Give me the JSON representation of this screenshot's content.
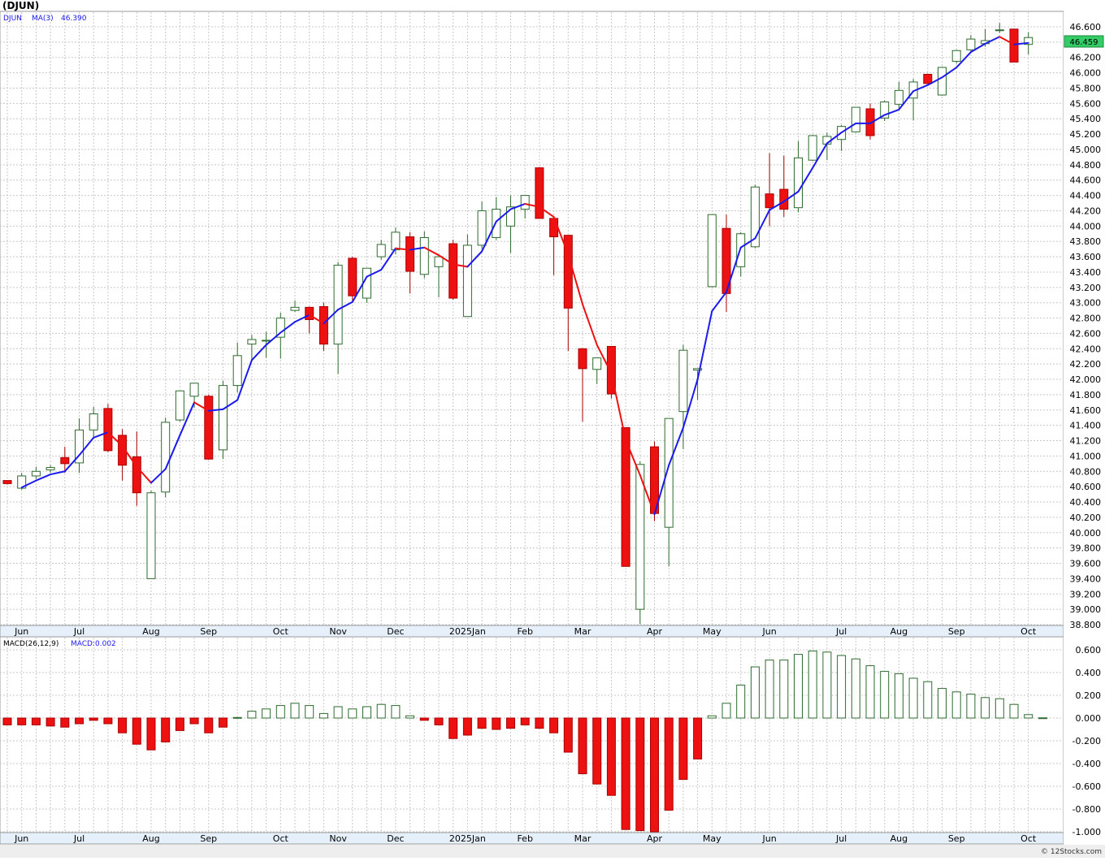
{
  "header": {
    "symbol_title": "(DJUN)",
    "legend_symbol": "DJUN",
    "legend_ma_label": "MA(3)",
    "legend_ma_value": "46.390",
    "last_price_tag": "46.459"
  },
  "macd_legend": {
    "label": "MACD(26,12,9)",
    "value_label": "MACD:0.002"
  },
  "credit": "© 12Stocks.com",
  "colors": {
    "up_fill": "#ffffff",
    "up_outline": "#2e6b2e",
    "down_fill": "#ee1111",
    "down_outline": "#aa0000",
    "ma_up": "#1a1aee",
    "ma_down": "#ee1111",
    "grid": "#c8c8c8",
    "axis_band": "#e6f0fb",
    "price_tag_bg": "#33cc66"
  },
  "chart_data": [
    {
      "type": "candlestick",
      "title": "DJUN",
      "ylim": [
        38.8,
        46.6
      ],
      "y_ticks": [
        "38.800",
        "39.000",
        "39.200",
        "39.400",
        "39.600",
        "39.800",
        "40.000",
        "40.200",
        "40.400",
        "40.600",
        "40.800",
        "41.000",
        "41.200",
        "41.400",
        "41.600",
        "41.800",
        "42.000",
        "42.200",
        "42.400",
        "42.600",
        "42.800",
        "43.000",
        "43.200",
        "43.400",
        "43.600",
        "43.800",
        "44.000",
        "44.200",
        "44.400",
        "44.600",
        "44.800",
        "45.000",
        "45.200",
        "45.400",
        "45.600",
        "45.800",
        "46.000",
        "46.200",
        "46.400",
        "46.600"
      ],
      "x_tick_labels": [
        "Jun",
        "Jul",
        "Aug",
        "Sep",
        "Oct",
        "Nov",
        "Dec",
        "2025Jan",
        "Feb",
        "Mar",
        "Apr",
        "May",
        "Jun",
        "Jul",
        "Aug",
        "Sep",
        "Oct"
      ],
      "x_tick_week_index": [
        1,
        5,
        10,
        14,
        19,
        23,
        27,
        32,
        36,
        40,
        45,
        49,
        53,
        58,
        62,
        66,
        71
      ],
      "ma_period": 3,
      "candles": [
        {
          "o": 40.68,
          "h": 40.68,
          "l": 40.63,
          "c": 40.64
        },
        {
          "o": 40.58,
          "h": 40.78,
          "l": 40.56,
          "c": 40.74
        },
        {
          "o": 40.74,
          "h": 40.86,
          "l": 40.7,
          "c": 40.8
        },
        {
          "o": 40.82,
          "h": 40.88,
          "l": 40.78,
          "c": 40.85
        },
        {
          "o": 40.98,
          "h": 41.12,
          "l": 40.78,
          "c": 40.9
        },
        {
          "o": 40.91,
          "h": 41.49,
          "l": 40.78,
          "c": 41.34
        },
        {
          "o": 41.34,
          "h": 41.64,
          "l": 41.25,
          "c": 41.55
        },
        {
          "o": 41.62,
          "h": 41.68,
          "l": 41.05,
          "c": 41.07
        },
        {
          "o": 41.27,
          "h": 41.35,
          "l": 40.68,
          "c": 40.88
        },
        {
          "o": 40.99,
          "h": 41.32,
          "l": 40.35,
          "c": 40.52
        },
        {
          "o": 39.4,
          "h": 40.55,
          "l": 39.4,
          "c": 40.52
        },
        {
          "o": 40.53,
          "h": 41.5,
          "l": 40.46,
          "c": 41.44
        },
        {
          "o": 41.47,
          "h": 41.85,
          "l": 41.45,
          "c": 41.85
        },
        {
          "o": 41.78,
          "h": 41.95,
          "l": 41.63,
          "c": 41.95
        },
        {
          "o": 41.78,
          "h": 41.8,
          "l": 40.95,
          "c": 40.96
        },
        {
          "o": 41.08,
          "h": 41.98,
          "l": 40.96,
          "c": 41.92
        },
        {
          "o": 41.92,
          "h": 42.48,
          "l": 41.83,
          "c": 42.31
        },
        {
          "o": 42.46,
          "h": 42.58,
          "l": 42.23,
          "c": 42.52
        },
        {
          "o": 42.5,
          "h": 42.62,
          "l": 42.28,
          "c": 42.51
        },
        {
          "o": 42.55,
          "h": 42.87,
          "l": 42.27,
          "c": 42.8
        },
        {
          "o": 42.9,
          "h": 43.03,
          "l": 42.88,
          "c": 42.94
        },
        {
          "o": 42.94,
          "h": 42.95,
          "l": 42.6,
          "c": 42.78
        },
        {
          "o": 42.95,
          "h": 43.0,
          "l": 42.37,
          "c": 42.46
        },
        {
          "o": 42.46,
          "h": 43.53,
          "l": 42.07,
          "c": 43.49
        },
        {
          "o": 43.58,
          "h": 43.6,
          "l": 43.02,
          "c": 43.09
        },
        {
          "o": 43.06,
          "h": 43.45,
          "l": 43.0,
          "c": 43.45
        },
        {
          "o": 43.6,
          "h": 43.82,
          "l": 43.56,
          "c": 43.76
        },
        {
          "o": 43.69,
          "h": 43.98,
          "l": 43.63,
          "c": 43.92
        },
        {
          "o": 43.86,
          "h": 43.92,
          "l": 43.12,
          "c": 43.41
        },
        {
          "o": 43.37,
          "h": 43.93,
          "l": 43.32,
          "c": 43.85
        },
        {
          "o": 43.47,
          "h": 43.6,
          "l": 43.07,
          "c": 43.6
        },
        {
          "o": 43.77,
          "h": 43.82,
          "l": 43.04,
          "c": 43.06
        },
        {
          "o": 42.82,
          "h": 43.89,
          "l": 42.82,
          "c": 43.75
        },
        {
          "o": 43.75,
          "h": 44.32,
          "l": 43.7,
          "c": 44.2
        },
        {
          "o": 43.85,
          "h": 44.38,
          "l": 43.82,
          "c": 44.22
        },
        {
          "o": 44.0,
          "h": 44.4,
          "l": 43.65,
          "c": 44.25
        },
        {
          "o": 44.22,
          "h": 44.4,
          "l": 44.1,
          "c": 44.4
        },
        {
          "o": 44.76,
          "h": 44.77,
          "l": 44.1,
          "c": 44.1
        },
        {
          "o": 44.1,
          "h": 44.12,
          "l": 43.36,
          "c": 43.86
        },
        {
          "o": 43.88,
          "h": 43.88,
          "l": 42.37,
          "c": 42.93
        },
        {
          "o": 42.4,
          "h": 42.4,
          "l": 41.45,
          "c": 42.14
        },
        {
          "o": 42.13,
          "h": 42.28,
          "l": 41.94,
          "c": 42.28
        },
        {
          "o": 42.43,
          "h": 42.43,
          "l": 41.75,
          "c": 41.81
        },
        {
          "o": 41.37,
          "h": 41.37,
          "l": 39.56,
          "c": 39.56
        },
        {
          "o": 39.0,
          "h": 40.93,
          "l": 38.81,
          "c": 40.89
        },
        {
          "o": 41.12,
          "h": 41.19,
          "l": 40.15,
          "c": 40.25
        },
        {
          "o": 40.07,
          "h": 41.49,
          "l": 39.56,
          "c": 41.49
        },
        {
          "o": 41.58,
          "h": 42.45,
          "l": 41.09,
          "c": 42.38
        },
        {
          "o": 42.12,
          "h": 42.14,
          "l": 41.73,
          "c": 42.14
        },
        {
          "o": 43.21,
          "h": 44.15,
          "l": 43.2,
          "c": 44.15
        },
        {
          "o": 43.97,
          "h": 44.15,
          "l": 42.88,
          "c": 43.12
        },
        {
          "o": 43.47,
          "h": 43.92,
          "l": 43.34,
          "c": 43.9
        },
        {
          "o": 43.73,
          "h": 44.54,
          "l": 43.71,
          "c": 44.51
        },
        {
          "o": 44.42,
          "h": 44.95,
          "l": 44.0,
          "c": 44.24
        },
        {
          "o": 44.48,
          "h": 44.92,
          "l": 44.12,
          "c": 44.22
        },
        {
          "o": 44.24,
          "h": 45.11,
          "l": 44.18,
          "c": 44.89
        },
        {
          "o": 44.86,
          "h": 45.19,
          "l": 44.85,
          "c": 45.18
        },
        {
          "o": 45.07,
          "h": 45.22,
          "l": 44.86,
          "c": 45.17
        },
        {
          "o": 45.13,
          "h": 45.32,
          "l": 44.98,
          "c": 45.3
        },
        {
          "o": 45.23,
          "h": 45.55,
          "l": 45.22,
          "c": 45.55
        },
        {
          "o": 45.53,
          "h": 45.6,
          "l": 45.13,
          "c": 45.18
        },
        {
          "o": 45.41,
          "h": 45.64,
          "l": 45.37,
          "c": 45.62
        },
        {
          "o": 45.59,
          "h": 45.88,
          "l": 45.53,
          "c": 45.77
        },
        {
          "o": 45.67,
          "h": 45.92,
          "l": 45.38,
          "c": 45.88
        },
        {
          "o": 45.98,
          "h": 45.99,
          "l": 45.86,
          "c": 45.86
        },
        {
          "o": 45.71,
          "h": 46.08,
          "l": 45.7,
          "c": 46.07
        },
        {
          "o": 46.15,
          "h": 46.3,
          "l": 46.12,
          "c": 46.29
        },
        {
          "o": 46.3,
          "h": 46.49,
          "l": 46.26,
          "c": 46.44
        },
        {
          "o": 46.38,
          "h": 46.57,
          "l": 46.34,
          "c": 46.42
        },
        {
          "o": 46.55,
          "h": 46.65,
          "l": 46.52,
          "c": 46.56
        },
        {
          "o": 46.57,
          "h": 46.57,
          "l": 46.14,
          "c": 46.14
        },
        {
          "o": 46.37,
          "h": 46.53,
          "l": 46.24,
          "c": 46.46
        }
      ],
      "ma3": [
        null,
        40.59,
        40.68,
        40.76,
        40.8,
        41.01,
        41.24,
        41.31,
        41.13,
        40.86,
        40.65,
        40.83,
        41.27,
        41.7,
        41.59,
        41.61,
        41.73,
        42.25,
        42.45,
        42.61,
        42.75,
        42.84,
        42.73,
        42.91,
        43.01,
        43.34,
        43.43,
        43.71,
        43.69,
        43.72,
        43.62,
        43.5,
        43.47,
        43.67,
        44.06,
        44.22,
        44.29,
        44.25,
        44.12,
        43.63,
        42.98,
        42.45,
        42.08,
        41.21,
        40.75,
        40.24,
        40.88,
        41.37,
        42.0,
        42.89,
        43.14,
        43.72,
        43.84,
        44.21,
        44.32,
        44.45,
        44.76,
        45.08,
        45.22,
        45.34,
        45.34,
        45.45,
        45.52,
        45.76,
        45.84,
        45.94,
        46.07,
        46.27,
        46.38,
        46.47,
        46.37,
        46.39
      ]
    },
    {
      "type": "bar",
      "title": "MACD(26,12,9)",
      "ylim": [
        -1.0,
        0.6
      ],
      "y_ticks": [
        "0.600",
        "0.400",
        "0.200",
        "0.000",
        "-0.200",
        "-0.400",
        "-0.600",
        "-0.800",
        "-1.000"
      ],
      "x_tick_labels": [
        "Jun",
        "Jul",
        "Aug",
        "Sep",
        "Oct",
        "Nov",
        "Dec",
        "2025Jan",
        "Feb",
        "Mar",
        "Apr",
        "May",
        "Jun",
        "Jul",
        "Aug",
        "Sep",
        "Oct"
      ],
      "values": [
        -0.06,
        -0.06,
        -0.06,
        -0.07,
        -0.08,
        -0.05,
        -0.02,
        -0.05,
        -0.13,
        -0.23,
        -0.28,
        -0.21,
        -0.11,
        -0.05,
        -0.13,
        -0.08,
        0.005,
        0.06,
        0.08,
        0.11,
        0.13,
        0.11,
        0.04,
        0.1,
        0.08,
        0.1,
        0.12,
        0.11,
        0.02,
        -0.02,
        -0.06,
        -0.18,
        -0.15,
        -0.09,
        -0.1,
        -0.09,
        -0.06,
        -0.09,
        -0.13,
        -0.3,
        -0.49,
        -0.58,
        -0.68,
        -0.98,
        -0.99,
        -1.0,
        -0.81,
        -0.54,
        -0.36,
        0.02,
        0.13,
        0.29,
        0.45,
        0.51,
        0.51,
        0.56,
        0.59,
        0.58,
        0.55,
        0.52,
        0.46,
        0.41,
        0.39,
        0.35,
        0.32,
        0.26,
        0.23,
        0.21,
        0.18,
        0.17,
        0.12,
        0.03,
        0.002
      ]
    }
  ]
}
